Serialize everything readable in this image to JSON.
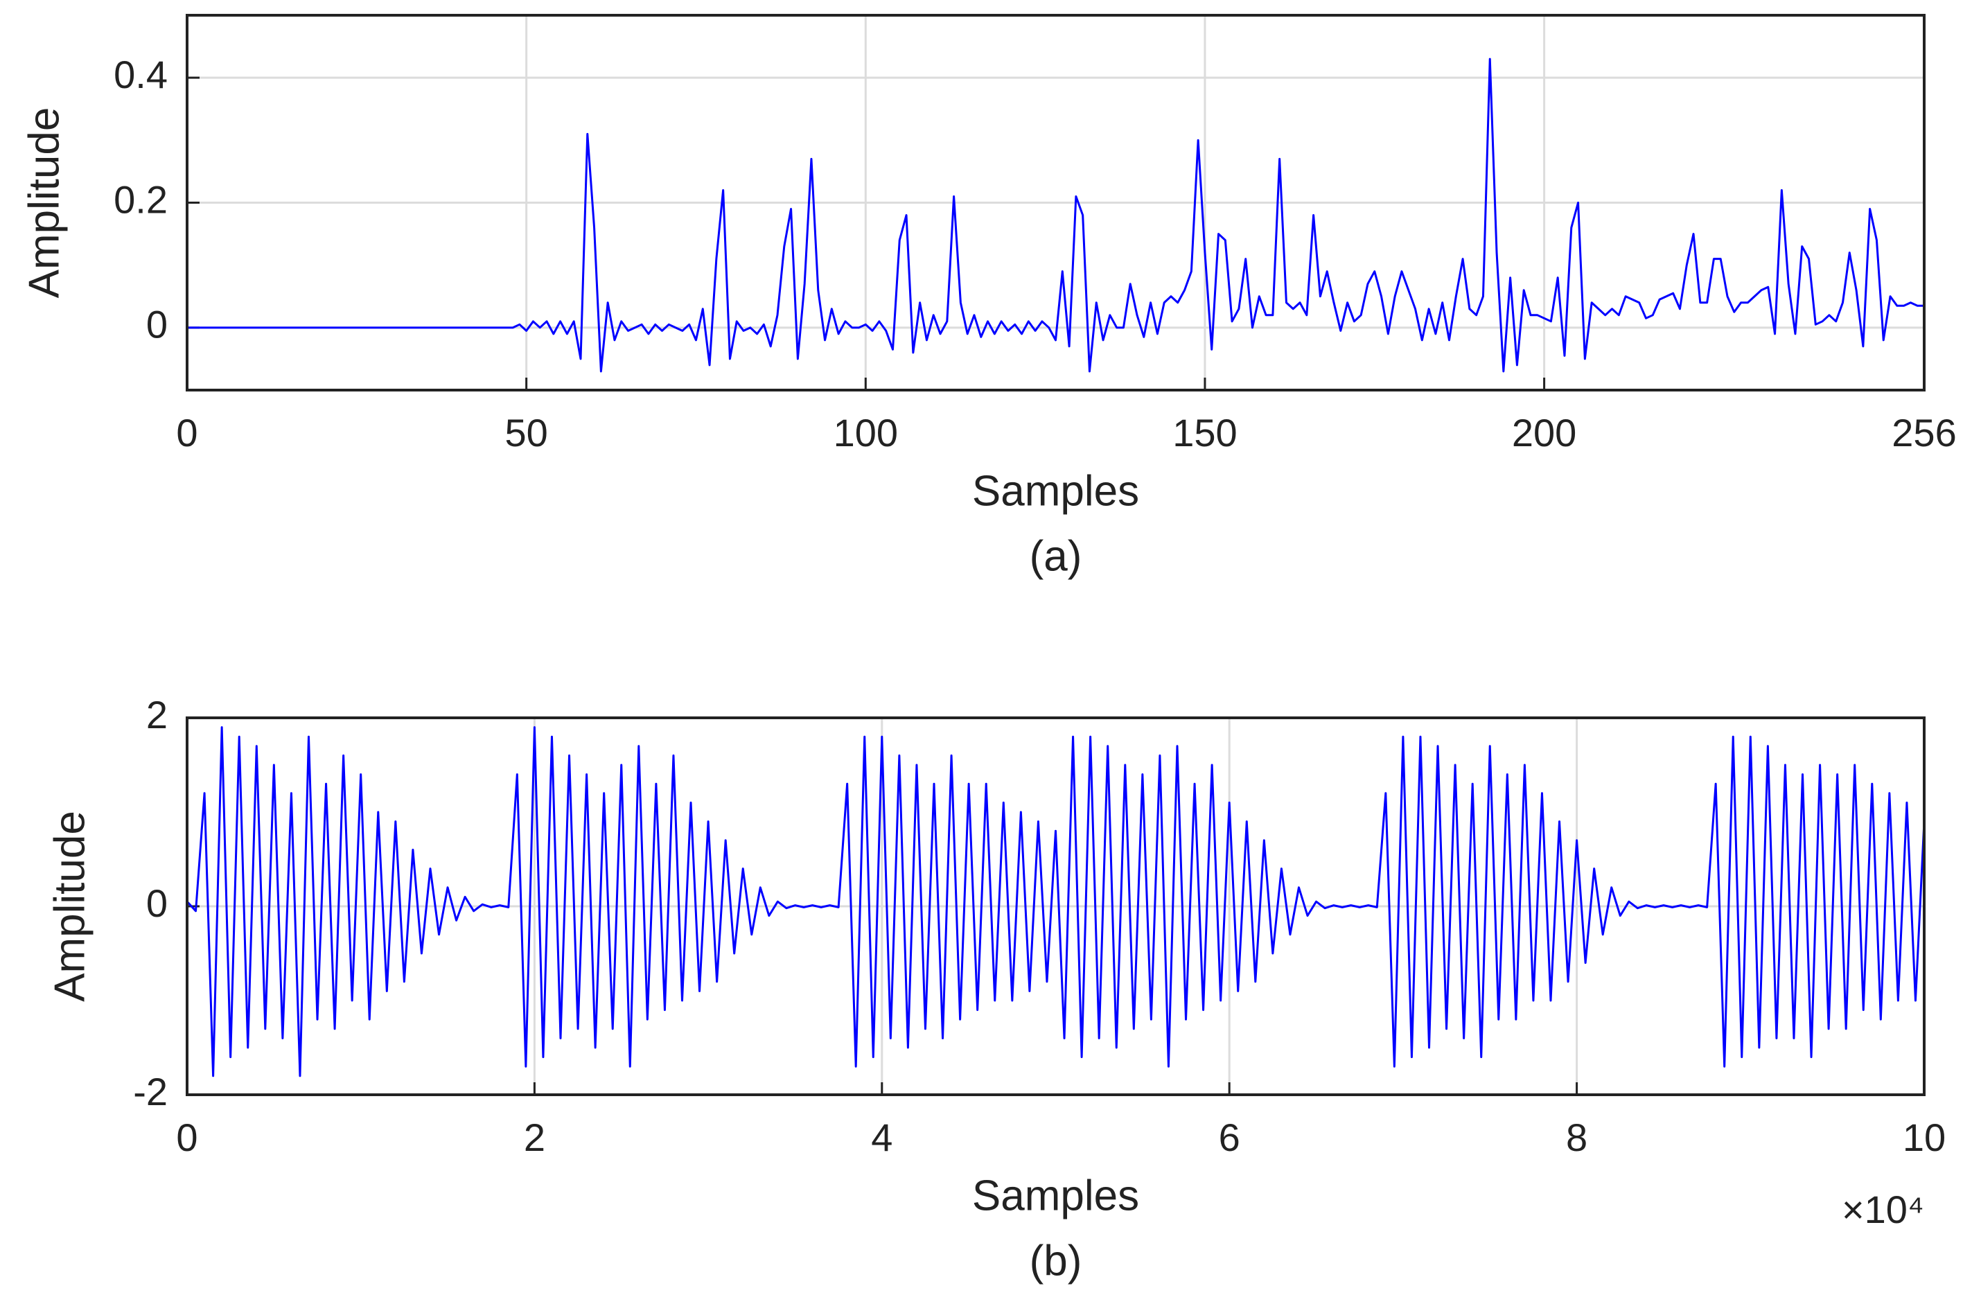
{
  "chart_data": [
    {
      "type": "line",
      "caption": "(a)",
      "xlabel": "Samples",
      "ylabel": "Amplitude",
      "color": "#0000ff",
      "grid": true,
      "xlim": [
        0,
        256
      ],
      "ylim": [
        -0.1,
        0.5
      ],
      "xticks": [
        0,
        50,
        100,
        150,
        200,
        256
      ],
      "yticks": [
        0,
        0.2,
        0.4
      ],
      "x": [
        0,
        47,
        48,
        49,
        50,
        51,
        52,
        53,
        54,
        55,
        56,
        57,
        58,
        59,
        60,
        61,
        62,
        63,
        64,
        65,
        66,
        67,
        68,
        69,
        70,
        71,
        72,
        73,
        74,
        75,
        76,
        77,
        78,
        79,
        80,
        81,
        82,
        83,
        84,
        85,
        86,
        87,
        88,
        89,
        90,
        91,
        92,
        93,
        94,
        95,
        96,
        97,
        98,
        99,
        100,
        101,
        102,
        103,
        104,
        105,
        106,
        107,
        108,
        109,
        110,
        111,
        112,
        113,
        114,
        115,
        116,
        117,
        118,
        119,
        120,
        121,
        122,
        123,
        124,
        125,
        126,
        127,
        128,
        129,
        130,
        131,
        132,
        133,
        134,
        135,
        136,
        137,
        138,
        139,
        140,
        141,
        142,
        143,
        144,
        145,
        146,
        147,
        148,
        149,
        150,
        151,
        152,
        153,
        154,
        155,
        156,
        157,
        158,
        159,
        160,
        161,
        162,
        163,
        164,
        165,
        166,
        167,
        168,
        169,
        170,
        171,
        172,
        173,
        174,
        175,
        176,
        177,
        178,
        179,
        180,
        181,
        182,
        183,
        184,
        185,
        186,
        187,
        188,
        189,
        190,
        191,
        192,
        193,
        194,
        195,
        196,
        197,
        198,
        199,
        200,
        201,
        202,
        203,
        204,
        205,
        206,
        207,
        208,
        209,
        210,
        211,
        212,
        213,
        214,
        215,
        216,
        217,
        218,
        219,
        220,
        221,
        222,
        223,
        224,
        225,
        226,
        227,
        228,
        229,
        230,
        231,
        232,
        233,
        234,
        235,
        236,
        237,
        238,
        239,
        240,
        241,
        242,
        243,
        244,
        245,
        246,
        247,
        248,
        249,
        250,
        251,
        252,
        253,
        254,
        255,
        256
      ],
      "values": [
        0,
        0,
        0,
        0.005,
        -0.005,
        0.01,
        0,
        0.01,
        -0.01,
        0.01,
        -0.01,
        0.01,
        -0.05,
        0.31,
        0.16,
        -0.07,
        0.04,
        -0.02,
        0.01,
        -0.005,
        0,
        0.005,
        -0.01,
        0.005,
        -0.005,
        0.005,
        0,
        -0.005,
        0.005,
        -0.02,
        0.03,
        -0.06,
        0.11,
        0.22,
        -0.05,
        0.01,
        -0.005,
        0,
        -0.01,
        0.005,
        -0.03,
        0.02,
        0.13,
        0.19,
        -0.05,
        0.07,
        0.27,
        0.06,
        -0.02,
        0.03,
        -0.01,
        0.01,
        0,
        0,
        0.005,
        -0.005,
        0.01,
        -0.005,
        -0.035,
        0.14,
        0.18,
        -0.04,
        0.04,
        -0.02,
        0.02,
        -0.01,
        0.01,
        0.21,
        0.04,
        -0.01,
        0.02,
        -0.015,
        0.01,
        -0.01,
        0.01,
        -0.005,
        0.005,
        -0.01,
        0.01,
        -0.005,
        0.01,
        0,
        -0.02,
        0.09,
        -0.03,
        0.21,
        0.18,
        -0.07,
        0.04,
        -0.02,
        0.02,
        0,
        0,
        0.07,
        0.02,
        -0.015,
        0.04,
        -0.01,
        0.04,
        0.05,
        0.04,
        0.06,
        0.09,
        0.3,
        0.12,
        -0.035,
        0.15,
        0.14,
        0.01,
        0.03,
        0.11,
        0,
        0.05,
        0.02,
        0.02,
        0.27,
        0.04,
        0.03,
        0.04,
        0.02,
        0.18,
        0.05,
        0.09,
        0.04,
        -0.005,
        0.04,
        0.01,
        0.02,
        0.07,
        0.09,
        0.05,
        -0.01,
        0.05,
        0.09,
        0.06,
        0.03,
        -0.02,
        0.03,
        -0.01,
        0.04,
        -0.02,
        0.05,
        0.11,
        0.03,
        0.02,
        0.05,
        0.43,
        0.12,
        -0.07,
        0.08,
        -0.06,
        0.06,
        0.02,
        0.02,
        0.015,
        0.01,
        0.08,
        -0.045,
        0.16,
        0.2,
        -0.05,
        0.04,
        0.03,
        0.02,
        0.03,
        0.02,
        0.05,
        0.045,
        0.04,
        0.015,
        0.02,
        0.045,
        0.05,
        0.055,
        0.03,
        0.1,
        0.15,
        0.04,
        0.04,
        0.11,
        0.11,
        0.05,
        0.025,
        0.04,
        0.04,
        0.05,
        0.06,
        0.065,
        -0.01,
        0.22,
        0.07,
        -0.01,
        0.13,
        0.11,
        0.005,
        0.01,
        0.02,
        0.01,
        0.04,
        0.12,
        0.06,
        -0.03,
        0.19,
        0.14,
        -0.02,
        0.05,
        0.035,
        0.035,
        0.04,
        0.035,
        0.035
      ]
    },
    {
      "type": "line",
      "caption": "(b)",
      "xlabel": "Samples",
      "ylabel": "Amplitude",
      "x_multiplier": "×10⁴",
      "color": "#0000ff",
      "grid": true,
      "xlim": [
        0,
        100000
      ],
      "ylim": [
        -2,
        2
      ],
      "xticks": [
        0,
        {
          "value": 20000,
          "label": "2"
        },
        {
          "value": 40000,
          "label": "4"
        },
        {
          "value": 60000,
          "label": "6"
        },
        {
          "value": 80000,
          "label": "8"
        },
        {
          "value": 100000,
          "label": "10"
        }
      ],
      "yticks": [
        -2,
        0,
        2
      ],
      "x": [
        0,
        500,
        1000,
        1500,
        2000,
        2500,
        3000,
        3500,
        4000,
        4500,
        5000,
        5500,
        6000,
        6500,
        7000,
        7500,
        8000,
        8500,
        9000,
        9500,
        10000,
        10500,
        11000,
        11500,
        12000,
        12500,
        13000,
        13500,
        14000,
        14500,
        15000,
        15500,
        16000,
        16500,
        17000,
        17500,
        18000,
        18500,
        19000,
        19500,
        20000,
        20500,
        21000,
        21500,
        22000,
        22500,
        23000,
        23500,
        24000,
        24500,
        25000,
        25500,
        26000,
        26500,
        27000,
        27500,
        28000,
        28500,
        29000,
        29500,
        30000,
        30500,
        31000,
        31500,
        32000,
        32500,
        33000,
        33500,
        34000,
        34500,
        35000,
        35500,
        36000,
        36500,
        37000,
        37500,
        38000,
        38500,
        39000,
        39500,
        40000,
        40500,
        41000,
        41500,
        42000,
        42500,
        43000,
        43500,
        44000,
        44500,
        45000,
        45500,
        46000,
        46500,
        47000,
        47500,
        48000,
        48500,
        49000,
        49500,
        50000,
        50500,
        51000,
        51500,
        52000,
        52500,
        53000,
        53500,
        54000,
        54500,
        55000,
        55500,
        56000,
        56500,
        57000,
        57500,
        58000,
        58500,
        59000,
        59500,
        60000,
        60500,
        61000,
        61500,
        62000,
        62500,
        63000,
        63500,
        64000,
        64500,
        65000,
        65500,
        66000,
        66500,
        67000,
        67500,
        68000,
        68500,
        69000,
        69500,
        70000,
        70500,
        71000,
        71500,
        72000,
        72500,
        73000,
        73500,
        74000,
        74500,
        75000,
        75500,
        76000,
        76500,
        77000,
        77500,
        78000,
        78500,
        79000,
        79500,
        80000,
        80500,
        81000,
        81500,
        82000,
        82500,
        83000,
        83500,
        84000,
        84500,
        85000,
        85500,
        86000,
        86500,
        87000,
        87500,
        88000,
        88500,
        89000,
        89500,
        90000,
        90500,
        91000,
        91500,
        92000,
        92500,
        93000,
        93500,
        94000,
        94500,
        95000,
        95500,
        96000,
        96500,
        97000,
        97500,
        98000,
        98500,
        99000,
        99500,
        100000
      ],
      "values": [
        0.05,
        -0.05,
        1.2,
        -1.8,
        1.9,
        -1.6,
        1.8,
        -1.5,
        1.7,
        -1.3,
        1.5,
        -1.4,
        1.2,
        -1.8,
        1.8,
        -1.2,
        1.3,
        -1.3,
        1.6,
        -1.0,
        1.4,
        -1.2,
        1.0,
        -0.9,
        0.9,
        -0.8,
        0.6,
        -0.5,
        0.4,
        -0.3,
        0.2,
        -0.15,
        0.1,
        -0.05,
        0.02,
        -0.01,
        0.01,
        -0.01,
        1.4,
        -1.7,
        1.9,
        -1.6,
        1.8,
        -1.4,
        1.6,
        -1.3,
        1.4,
        -1.5,
        1.2,
        -1.3,
        1.5,
        -1.7,
        1.7,
        -1.2,
        1.3,
        -1.1,
        1.6,
        -1.0,
        1.1,
        -0.9,
        0.9,
        -0.8,
        0.7,
        -0.5,
        0.4,
        -0.3,
        0.2,
        -0.1,
        0.05,
        -0.02,
        0.01,
        -0.01,
        0.01,
        -0.01,
        0.01,
        -0.01,
        1.3,
        -1.7,
        1.8,
        -1.6,
        1.8,
        -1.4,
        1.6,
        -1.5,
        1.5,
        -1.3,
        1.3,
        -1.4,
        1.6,
        -1.2,
        1.3,
        -1.1,
        1.3,
        -1.0,
        1.1,
        -1.0,
        1.0,
        -0.9,
        0.9,
        -0.8,
        0.8,
        -1.4,
        1.8,
        -1.6,
        1.8,
        -1.4,
        1.7,
        -1.5,
        1.5,
        -1.3,
        1.4,
        -1.2,
        1.6,
        -1.7,
        1.7,
        -1.2,
        1.3,
        -1.1,
        1.5,
        -1.0,
        1.1,
        -0.9,
        0.9,
        -0.8,
        0.7,
        -0.5,
        0.4,
        -0.3,
        0.2,
        -0.1,
        0.05,
        -0.02,
        0.01,
        -0.01,
        0.01,
        -0.01,
        0.01,
        -0.01,
        1.2,
        -1.7,
        1.8,
        -1.6,
        1.8,
        -1.5,
        1.7,
        -1.3,
        1.5,
        -1.4,
        1.3,
        -1.6,
        1.7,
        -1.2,
        1.4,
        -1.2,
        1.5,
        -1.0,
        1.2,
        -1.0,
        0.9,
        -0.8,
        0.7,
        -0.6,
        0.4,
        -0.3,
        0.2,
        -0.1,
        0.05,
        -0.02,
        0.01,
        -0.01,
        0.01,
        -0.01,
        0.01,
        -0.01,
        0.01,
        -0.01,
        1.3,
        -1.7,
        1.8,
        -1.6,
        1.8,
        -1.5,
        1.7,
        -1.4,
        1.5,
        -1.4,
        1.4,
        -1.6,
        1.5,
        -1.3,
        1.4,
        -1.3,
        1.5,
        -1.1,
        1.3,
        -1.2,
        1.2,
        -1.0,
        1.1,
        -1.0,
        0.9
      ]
    }
  ]
}
